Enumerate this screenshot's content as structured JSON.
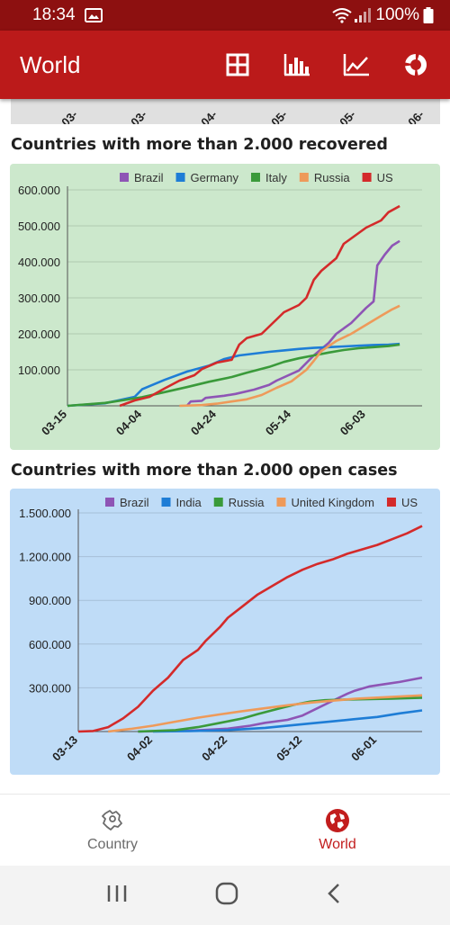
{
  "status": {
    "time": "18:34",
    "battery": "100%"
  },
  "app_bar": {
    "title": "World",
    "icons": [
      "grid-icon",
      "bar-chart-icon",
      "line-chart-icon",
      "donut-icon"
    ]
  },
  "prev_chart": {
    "ticks": [
      "03-",
      "03-",
      "04-",
      "05-",
      "05-",
      "06-"
    ]
  },
  "recovered": {
    "title": "Countries with more than 2.000 recovered",
    "background": "#cce8cc",
    "chart_data": {
      "type": "line",
      "x_ticks": [
        "03-15",
        "04-04",
        "04-24",
        "05-14",
        "06-03"
      ],
      "x_range": [
        0,
        95
      ],
      "x_tick_positions": [
        0,
        20,
        40,
        60,
        80
      ],
      "ylim": [
        0,
        600000
      ],
      "y_ticks": [
        {
          "v": 100000,
          "label": "100.000"
        },
        {
          "v": 200000,
          "label": "200.000"
        },
        {
          "v": 300000,
          "label": "300.000"
        },
        {
          "v": 400000,
          "label": "400.000"
        },
        {
          "v": 500000,
          "label": "500.000"
        },
        {
          "v": 600000,
          "label": "600.000"
        }
      ],
      "legend_position": "top",
      "series": [
        {
          "name": "Brazil",
          "color": "#8e55b5",
          "points": [
            [
              32,
              0
            ],
            [
              33,
              12000
            ],
            [
              36,
              14000
            ],
            [
              37,
              22000
            ],
            [
              42,
              28000
            ],
            [
              45,
              33000
            ],
            [
              50,
              45000
            ],
            [
              54,
              58000
            ],
            [
              56,
              70000
            ],
            [
              62,
              98000
            ],
            [
              66,
              140000
            ],
            [
              70,
              175000
            ],
            [
              72,
              200000
            ],
            [
              76,
              230000
            ],
            [
              80,
              272000
            ],
            [
              82,
              290000
            ],
            [
              83,
              390000
            ],
            [
              85,
              420000
            ],
            [
              87,
              445000
            ],
            [
              89,
              458000
            ]
          ]
        },
        {
          "name": "Germany",
          "color": "#1e7dd6",
          "points": [
            [
              0,
              0
            ],
            [
              10,
              7000
            ],
            [
              18,
              25000
            ],
            [
              20,
              46000
            ],
            [
              26,
              72000
            ],
            [
              32,
              95000
            ],
            [
              38,
              112000
            ],
            [
              42,
              130000
            ],
            [
              46,
              140000
            ],
            [
              50,
              145000
            ],
            [
              54,
              150000
            ],
            [
              58,
              154000
            ],
            [
              62,
              158000
            ],
            [
              66,
              161000
            ],
            [
              70,
              163000
            ],
            [
              74,
              165000
            ],
            [
              78,
              167000
            ],
            [
              82,
              169000
            ],
            [
              86,
              170000
            ],
            [
              89,
              172000
            ]
          ]
        },
        {
          "name": "Italy",
          "color": "#3a9a3a",
          "points": [
            [
              0,
              0
            ],
            [
              10,
              8000
            ],
            [
              14,
              14000
            ],
            [
              20,
              24000
            ],
            [
              26,
              38000
            ],
            [
              32,
              52000
            ],
            [
              38,
              67000
            ],
            [
              44,
              80000
            ],
            [
              48,
              92000
            ],
            [
              54,
              108000
            ],
            [
              58,
              122000
            ],
            [
              62,
              132000
            ],
            [
              66,
              140000
            ],
            [
              70,
              148000
            ],
            [
              74,
              155000
            ],
            [
              78,
              160000
            ],
            [
              82,
              163000
            ],
            [
              86,
              166000
            ],
            [
              89,
              170000
            ]
          ]
        },
        {
          "name": "Russia",
          "color": "#ee9a5a",
          "points": [
            [
              30,
              0
            ],
            [
              36,
              2000
            ],
            [
              40,
              6000
            ],
            [
              44,
              12000
            ],
            [
              48,
              18000
            ],
            [
              52,
              30000
            ],
            [
              56,
              50000
            ],
            [
              60,
              68000
            ],
            [
              64,
              100000
            ],
            [
              66,
              125000
            ],
            [
              68,
              152000
            ],
            [
              72,
              180000
            ],
            [
              76,
              200000
            ],
            [
              80,
              225000
            ],
            [
              84,
              250000
            ],
            [
              87,
              268000
            ],
            [
              89,
              278000
            ]
          ]
        },
        {
          "name": "US",
          "color": "#d42a2a",
          "points": [
            [
              14,
              0
            ],
            [
              18,
              15000
            ],
            [
              22,
              25000
            ],
            [
              26,
              48000
            ],
            [
              30,
              70000
            ],
            [
              34,
              85000
            ],
            [
              36,
              102000
            ],
            [
              40,
              120000
            ],
            [
              44,
              128000
            ],
            [
              46,
              170000
            ],
            [
              48,
              188000
            ],
            [
              52,
              200000
            ],
            [
              56,
              240000
            ],
            [
              58,
              260000
            ],
            [
              62,
              280000
            ],
            [
              64,
              300000
            ],
            [
              66,
              350000
            ],
            [
              68,
              375000
            ],
            [
              72,
              410000
            ],
            [
              74,
              450000
            ],
            [
              78,
              480000
            ],
            [
              80,
              495000
            ],
            [
              84,
              515000
            ],
            [
              86,
              538000
            ],
            [
              89,
              555000
            ]
          ]
        }
      ]
    }
  },
  "open_cases": {
    "title": "Countries with more than 2.000 open cases",
    "background": "#bfdcf7",
    "chart_data": {
      "type": "line",
      "x_ticks": [
        "03-13",
        "04-02",
        "04-22",
        "05-12",
        "06-01"
      ],
      "x_range": [
        0,
        92
      ],
      "x_tick_positions": [
        0,
        20,
        40,
        60,
        80
      ],
      "ylim": [
        0,
        1500000
      ],
      "y_ticks": [
        {
          "v": 300000,
          "label": "300.000"
        },
        {
          "v": 600000,
          "label": "600.000"
        },
        {
          "v": 900000,
          "label": "900.000"
        },
        {
          "v": 1200000,
          "label": "1.200.000"
        },
        {
          "v": 1500000,
          "label": "1.500.000"
        }
      ],
      "legend_position": "top",
      "series": [
        {
          "name": "Brazil",
          "color": "#8e55b5",
          "points": [
            [
              16,
              0
            ],
            [
              30,
              6000
            ],
            [
              40,
              20000
            ],
            [
              46,
              40000
            ],
            [
              50,
              60000
            ],
            [
              56,
              80000
            ],
            [
              60,
              110000
            ],
            [
              64,
              160000
            ],
            [
              68,
              210000
            ],
            [
              72,
              260000
            ],
            [
              74,
              280000
            ],
            [
              78,
              310000
            ],
            [
              82,
              325000
            ],
            [
              86,
              340000
            ],
            [
              92,
              370000
            ]
          ]
        },
        {
          "name": "India",
          "color": "#1e7dd6",
          "points": [
            [
              20,
              0
            ],
            [
              30,
              3000
            ],
            [
              40,
              10000
            ],
            [
              50,
              25000
            ],
            [
              58,
              45000
            ],
            [
              62,
              55000
            ],
            [
              68,
              70000
            ],
            [
              74,
              85000
            ],
            [
              80,
              100000
            ],
            [
              86,
              125000
            ],
            [
              92,
              145000
            ]
          ]
        },
        {
          "name": "Russia",
          "color": "#3a9a3a",
          "points": [
            [
              16,
              0
            ],
            [
              26,
              10000
            ],
            [
              32,
              30000
            ],
            [
              38,
              60000
            ],
            [
              44,
              90000
            ],
            [
              48,
              120000
            ],
            [
              54,
              160000
            ],
            [
              58,
              185000
            ],
            [
              62,
              205000
            ],
            [
              66,
              215000
            ],
            [
              72,
              220000
            ],
            [
              78,
              222000
            ],
            [
              84,
              226000
            ],
            [
              92,
              232000
            ]
          ]
        },
        {
          "name": "United Kingdom",
          "color": "#ee9a5a",
          "points": [
            [
              8,
              0
            ],
            [
              14,
              18000
            ],
            [
              20,
              40000
            ],
            [
              26,
              68000
            ],
            [
              32,
              95000
            ],
            [
              38,
              118000
            ],
            [
              44,
              140000
            ],
            [
              50,
              160000
            ],
            [
              56,
              180000
            ],
            [
              62,
              198000
            ],
            [
              68,
              212000
            ],
            [
              74,
              225000
            ],
            [
              80,
              233000
            ],
            [
              86,
              240000
            ],
            [
              92,
              248000
            ]
          ]
        },
        {
          "name": "US",
          "color": "#d42a2a",
          "points": [
            [
              0,
              0
            ],
            [
              4,
              4000
            ],
            [
              8,
              30000
            ],
            [
              12,
              90000
            ],
            [
              16,
              170000
            ],
            [
              20,
              280000
            ],
            [
              24,
              370000
            ],
            [
              28,
              490000
            ],
            [
              32,
              560000
            ],
            [
              34,
              620000
            ],
            [
              38,
              720000
            ],
            [
              40,
              780000
            ],
            [
              44,
              860000
            ],
            [
              48,
              940000
            ],
            [
              52,
              1000000
            ],
            [
              56,
              1060000
            ],
            [
              60,
              1110000
            ],
            [
              64,
              1150000
            ],
            [
              68,
              1180000
            ],
            [
              72,
              1220000
            ],
            [
              76,
              1250000
            ],
            [
              80,
              1280000
            ],
            [
              84,
              1320000
            ],
            [
              88,
              1360000
            ],
            [
              92,
              1410000
            ]
          ]
        }
      ]
    }
  },
  "bottom_nav": {
    "items": [
      {
        "label": "Country",
        "active": false
      },
      {
        "label": "World",
        "active": true
      }
    ]
  }
}
